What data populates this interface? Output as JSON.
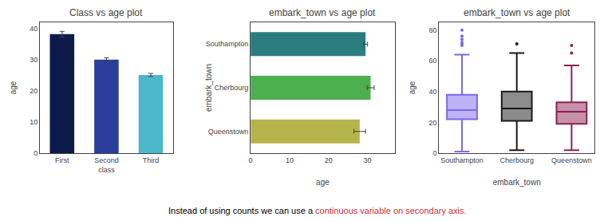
{
  "chart_data": [
    {
      "type": "bar",
      "title": "Class vs age plot",
      "categories": [
        "First",
        "Second\nclass",
        "Third"
      ],
      "values": [
        38.2,
        30.0,
        25.1
      ],
      "errors": [
        0.9,
        0.6,
        0.5
      ],
      "colors": [
        "#0d1b4b",
        "#2a3d9a",
        "#4ab8c8"
      ],
      "ylabel": "age",
      "ylim": [
        0,
        42
      ],
      "yticks": [
        0,
        10,
        20,
        30,
        40
      ],
      "grid": false
    },
    {
      "type": "bar",
      "orientation": "horizontal",
      "title": "embark_town vs age plot",
      "categories": [
        "Southampton",
        "Cherbourg",
        "Queenstown"
      ],
      "values": [
        29.5,
        30.8,
        28.0
      ],
      "errors": [
        0.5,
        0.9,
        1.5
      ],
      "colors": [
        "#2a7d7d",
        "#4caf50",
        "#b5b44c"
      ],
      "xlabel": "age",
      "ylabel": "embark_town",
      "xlim": [
        0,
        37
      ],
      "xticks": [
        0,
        10,
        20,
        30
      ],
      "grid": false
    },
    {
      "type": "box",
      "title": "embark_town vs age plot",
      "categories": [
        "Southampton",
        "Cherbourg",
        "Queenstown"
      ],
      "colors": [
        "#7b68ee",
        "#1a1a1a",
        "#8b2252"
      ],
      "q1": [
        22,
        21,
        19
      ],
      "median": [
        28,
        29,
        27
      ],
      "q3": [
        38,
        40,
        33
      ],
      "whisker_low": [
        1,
        2,
        2
      ],
      "whisker_high": [
        64,
        65,
        57
      ],
      "outliers": [
        [
          70,
          71,
          72,
          74,
          76,
          80
        ],
        [
          71
        ],
        [
          65,
          70
        ]
      ],
      "xlabel": "embark_town",
      "ylabel": "age",
      "ylim": [
        0,
        85
      ],
      "yticks": [
        0,
        20,
        40,
        60,
        80
      ],
      "grid": false
    }
  ],
  "caption": [
    {
      "text": "Instead of using counts we can use a ",
      "color": "black"
    },
    {
      "text": "continuous variable on secondary axis.",
      "color": "#cc3333"
    }
  ]
}
